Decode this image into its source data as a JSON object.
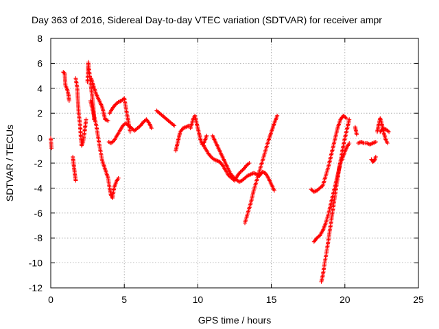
{
  "chart_data": {
    "type": "scatter",
    "title": "Day 363 of 2016, Sidereal Day-to-day VTEC variation (SDTVAR) for receiver ampr",
    "xlabel": "GPS time / hours",
    "ylabel": "SDTVAR / TECUs",
    "xlim": [
      0,
      25
    ],
    "ylim": [
      -12,
      8
    ],
    "xticks": [
      "0",
      "5",
      "10",
      "15",
      "20",
      "25"
    ],
    "yticks": [
      "8",
      "6",
      "4",
      "2",
      "0",
      "-2",
      "-4",
      "-6",
      "-8",
      "-10",
      "-12"
    ],
    "xtick_values": [
      0,
      5,
      10,
      15,
      20,
      25
    ],
    "ytick_values": [
      8,
      6,
      4,
      2,
      0,
      -2,
      -4,
      -6,
      -8,
      -10,
      -12
    ],
    "grid": true,
    "marker": "+",
    "color": "#ff0000",
    "segments": [
      [
        [
          0.0,
          0.0
        ],
        [
          0.05,
          -0.8
        ]
      ],
      [
        [
          0.85,
          5.3
        ],
        [
          0.95,
          5.2
        ],
        [
          1.0,
          4.2
        ],
        [
          1.1,
          4.0
        ],
        [
          1.2,
          3.5
        ],
        [
          1.25,
          3.0
        ]
      ],
      [
        [
          1.5,
          -1.5
        ],
        [
          1.55,
          -2.0
        ],
        [
          1.6,
          -2.5
        ],
        [
          1.65,
          -3.0
        ],
        [
          1.7,
          -3.4
        ]
      ],
      [
        [
          1.7,
          4.8
        ],
        [
          1.8,
          4.0
        ],
        [
          1.85,
          3.0
        ],
        [
          1.9,
          2.0
        ],
        [
          2.0,
          1.0
        ],
        [
          2.05,
          0.0
        ],
        [
          2.1,
          -0.6
        ],
        [
          2.2,
          -0.3
        ],
        [
          2.3,
          0.5
        ],
        [
          2.4,
          1.5
        ]
      ],
      [
        [
          2.5,
          4.5
        ],
        [
          2.55,
          6.1
        ],
        [
          2.6,
          5.5
        ],
        [
          2.7,
          4.5
        ],
        [
          2.8,
          3.5
        ],
        [
          2.9,
          2.5
        ],
        [
          2.95,
          1.5
        ]
      ],
      [
        [
          2.75,
          4.8
        ],
        [
          2.9,
          4.2
        ],
        [
          3.1,
          3.5
        ],
        [
          3.3,
          3.0
        ],
        [
          3.5,
          2.5
        ],
        [
          3.6,
          2.0
        ],
        [
          3.7,
          1.5
        ],
        [
          3.9,
          1.4
        ]
      ],
      [
        [
          2.7,
          3.0
        ],
        [
          2.9,
          2.0
        ],
        [
          3.1,
          1.0
        ],
        [
          3.3,
          -0.5
        ],
        [
          3.5,
          -1.8
        ],
        [
          3.7,
          -2.5
        ],
        [
          3.9,
          -3.2
        ],
        [
          4.0,
          -4.0
        ],
        [
          4.1,
          -4.6
        ],
        [
          4.2,
          -4.8
        ],
        [
          4.3,
          -4.0
        ],
        [
          4.45,
          -3.5
        ],
        [
          4.6,
          -3.2
        ]
      ],
      [
        [
          3.95,
          -0.3
        ],
        [
          4.1,
          -0.4
        ],
        [
          4.3,
          -0.2
        ],
        [
          4.5,
          0.2
        ],
        [
          4.7,
          0.6
        ],
        [
          4.9,
          1.0
        ],
        [
          5.1,
          1.2
        ],
        [
          5.3,
          1.0
        ],
        [
          5.5,
          0.8
        ],
        [
          5.7,
          0.6
        ],
        [
          5.9,
          0.8
        ],
        [
          6.1,
          1.0
        ],
        [
          6.3,
          1.3
        ],
        [
          6.5,
          1.5
        ],
        [
          6.7,
          1.2
        ],
        [
          6.85,
          0.8
        ]
      ],
      [
        [
          4.0,
          2.0
        ],
        [
          4.2,
          2.4
        ],
        [
          4.4,
          2.7
        ],
        [
          4.6,
          2.9
        ],
        [
          4.8,
          3.0
        ],
        [
          5.0,
          3.2
        ],
        [
          5.1,
          2.5
        ],
        [
          5.2,
          1.8
        ],
        [
          5.3,
          1.2
        ],
        [
          5.4,
          0.5
        ]
      ],
      [
        [
          7.2,
          2.2
        ],
        [
          7.4,
          2.0
        ],
        [
          7.6,
          1.8
        ],
        [
          7.8,
          1.6
        ],
        [
          8.0,
          1.4
        ],
        [
          8.2,
          1.2
        ],
        [
          8.4,
          1.0
        ]
      ],
      [
        [
          8.5,
          -1.0
        ],
        [
          8.6,
          -0.5
        ],
        [
          8.7,
          0.0
        ],
        [
          8.8,
          0.5
        ],
        [
          9.0,
          0.8
        ],
        [
          9.2,
          0.9
        ],
        [
          9.4,
          1.0
        ]
      ],
      [
        [
          9.5,
          0.8
        ],
        [
          9.6,
          1.2
        ],
        [
          9.7,
          1.6
        ],
        [
          9.8,
          1.8
        ],
        [
          9.9,
          1.3
        ],
        [
          10.0,
          0.8
        ],
        [
          10.1,
          0.3
        ],
        [
          10.2,
          -0.2
        ],
        [
          10.3,
          -0.5
        ],
        [
          10.45,
          -0.3
        ],
        [
          10.6,
          0.2
        ]
      ],
      [
        [
          10.3,
          -0.4
        ],
        [
          10.5,
          -0.8
        ],
        [
          10.7,
          -1.2
        ],
        [
          10.9,
          -1.5
        ],
        [
          11.1,
          -1.7
        ],
        [
          11.3,
          -1.8
        ],
        [
          11.5,
          -1.9
        ],
        [
          11.7,
          -2.2
        ],
        [
          11.9,
          -2.6
        ],
        [
          12.1,
          -3.0
        ],
        [
          12.3,
          -3.2
        ],
        [
          12.5,
          -3.4
        ],
        [
          12.7,
          -3.0
        ],
        [
          12.9,
          -2.7
        ],
        [
          13.1,
          -2.5
        ],
        [
          13.3,
          -2.2
        ],
        [
          13.5,
          -2.0
        ]
      ],
      [
        [
          11.0,
          0.2
        ],
        [
          11.2,
          -0.3
        ],
        [
          11.4,
          -0.8
        ],
        [
          11.6,
          -1.3
        ],
        [
          11.8,
          -1.8
        ],
        [
          12.0,
          -2.3
        ],
        [
          12.2,
          -2.8
        ],
        [
          12.4,
          -3.1
        ],
        [
          12.6,
          -3.3
        ],
        [
          12.8,
          -3.5
        ],
        [
          13.0,
          -3.4
        ],
        [
          13.2,
          -3.2
        ],
        [
          13.4,
          -3.0
        ],
        [
          13.6,
          -2.9
        ],
        [
          13.8,
          -2.8
        ],
        [
          14.0,
          -2.9
        ],
        [
          14.2,
          -3.0
        ],
        [
          14.4,
          -2.7
        ],
        [
          14.6,
          -2.8
        ],
        [
          14.8,
          -3.2
        ],
        [
          15.0,
          -3.7
        ],
        [
          15.2,
          -4.2
        ]
      ],
      [
        [
          13.2,
          -6.8
        ],
        [
          13.4,
          -6.0
        ],
        [
          13.6,
          -5.2
        ],
        [
          13.8,
          -4.2
        ],
        [
          14.0,
          -3.4
        ],
        [
          14.2,
          -2.6
        ],
        [
          14.4,
          -1.8
        ],
        [
          14.6,
          -1.0
        ],
        [
          14.8,
          -0.2
        ],
        [
          15.0,
          0.5
        ],
        [
          15.2,
          1.2
        ],
        [
          15.4,
          1.8
        ]
      ],
      [
        [
          17.7,
          -4.1
        ],
        [
          17.9,
          -4.3
        ],
        [
          18.1,
          -4.2
        ],
        [
          18.3,
          -4.0
        ],
        [
          18.5,
          -3.8
        ],
        [
          18.7,
          -3.0
        ],
        [
          18.9,
          -2.2
        ],
        [
          19.1,
          -1.2
        ],
        [
          19.3,
          -0.2
        ],
        [
          19.5,
          0.8
        ],
        [
          19.7,
          1.5
        ],
        [
          19.9,
          1.8
        ],
        [
          20.1,
          1.6
        ]
      ],
      [
        [
          17.9,
          -8.3
        ],
        [
          18.1,
          -8.0
        ],
        [
          18.3,
          -7.8
        ],
        [
          18.5,
          -7.4
        ],
        [
          18.7,
          -6.8
        ],
        [
          18.9,
          -6.0
        ],
        [
          19.1,
          -5.0
        ],
        [
          19.3,
          -4.0
        ],
        [
          19.5,
          -3.0
        ],
        [
          19.7,
          -2.0
        ],
        [
          19.9,
          -1.4
        ],
        [
          20.1,
          -0.8
        ],
        [
          20.3,
          -0.4
        ]
      ],
      [
        [
          18.4,
          -11.5
        ],
        [
          18.5,
          -11.0
        ],
        [
          18.6,
          -10.2
        ],
        [
          18.8,
          -8.8
        ],
        [
          19.0,
          -7.2
        ],
        [
          19.2,
          -5.6
        ],
        [
          19.4,
          -4.0
        ],
        [
          19.6,
          -2.5
        ],
        [
          19.8,
          -1.2
        ],
        [
          20.0,
          0.0
        ],
        [
          20.2,
          1.0
        ],
        [
          20.3,
          1.5
        ]
      ],
      [
        [
          20.7,
          0.9
        ],
        [
          20.8,
          0.3
        ]
      ],
      [
        [
          20.9,
          -0.4
        ],
        [
          21.1,
          -0.3
        ],
        [
          21.3,
          -0.4
        ],
        [
          21.5,
          -0.4
        ],
        [
          21.7,
          -0.5
        ],
        [
          21.9,
          -0.4
        ],
        [
          22.1,
          -0.3
        ]
      ],
      [
        [
          21.8,
          -1.7
        ],
        [
          21.9,
          -1.9
        ],
        [
          22.0,
          -1.8
        ],
        [
          22.1,
          -1.5
        ]
      ],
      [
        [
          22.2,
          0.5
        ],
        [
          22.3,
          1.1
        ],
        [
          22.4,
          1.6
        ],
        [
          22.5,
          1.2
        ],
        [
          22.6,
          0.6
        ],
        [
          22.7,
          0.2
        ],
        [
          22.8,
          -0.2
        ],
        [
          22.9,
          -0.4
        ]
      ],
      [
        [
          22.4,
          0.5
        ],
        [
          22.6,
          0.8
        ],
        [
          22.8,
          0.7
        ],
        [
          23.0,
          0.5
        ]
      ]
    ]
  }
}
